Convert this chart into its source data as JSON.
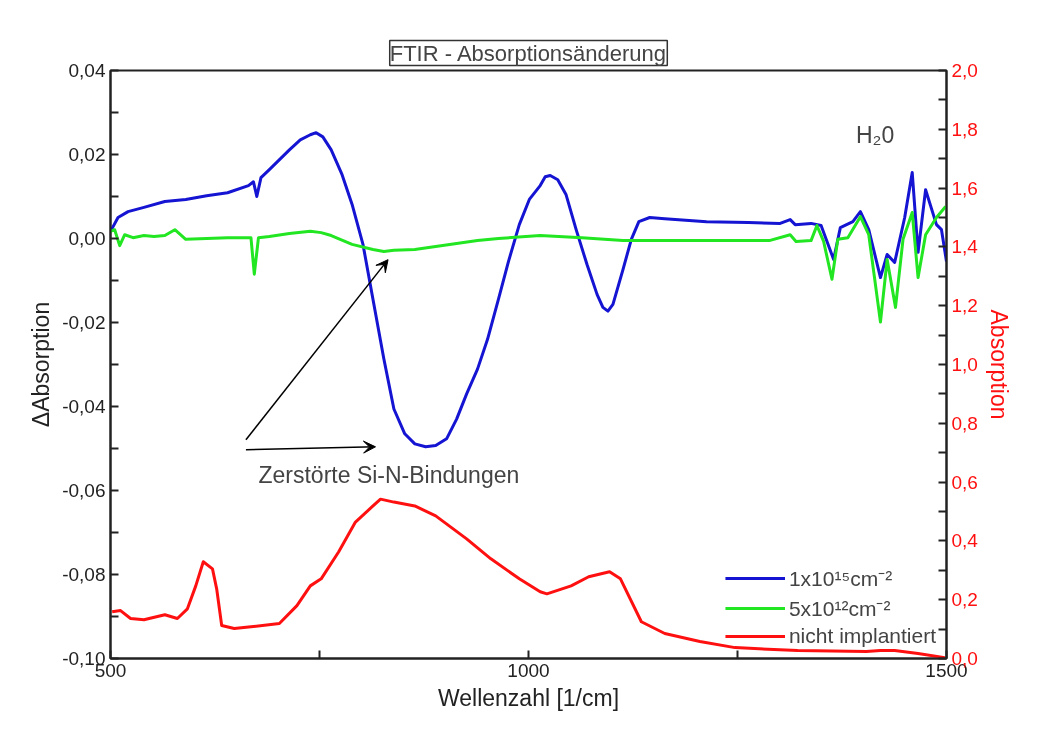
{
  "chart_data": {
    "type": "line",
    "title": "FTIR - Absorptionsänderung",
    "xlabel": "Wellenzahl [1/cm]",
    "ylabel": "ΔAbsorption",
    "y2label": "Absorption",
    "xlim": [
      500,
      1500
    ],
    "xticks": [
      500,
      {
        "value": 750,
        "label": null
      },
      1000,
      {
        "value": 1250,
        "label": null
      },
      1500
    ],
    "ylim": [
      -0.1,
      0.04
    ],
    "yticks": [
      {
        "value": -0.1,
        "label": "-0,10"
      },
      {
        "value": -0.09,
        "label": null
      },
      {
        "value": -0.08,
        "label": "-0,08"
      },
      {
        "value": -0.07,
        "label": null
      },
      {
        "value": -0.06,
        "label": "-0,06"
      },
      {
        "value": -0.05,
        "label": null
      },
      {
        "value": -0.04,
        "label": "-0,04"
      },
      {
        "value": -0.03,
        "label": null
      },
      {
        "value": -0.02,
        "label": "-0,02"
      },
      {
        "value": -0.01,
        "label": null
      },
      {
        "value": 0.0,
        "label": "0,00"
      },
      {
        "value": 0.01,
        "label": null
      },
      {
        "value": 0.02,
        "label": "0,02"
      },
      {
        "value": 0.03,
        "label": null
      },
      {
        "value": 0.04,
        "label": "0,04"
      }
    ],
    "y2lim": [
      0.0,
      2.0
    ],
    "y2ticks": [
      {
        "value": 0.0,
        "label": "0,0"
      },
      {
        "value": 0.1,
        "label": null
      },
      {
        "value": 0.2,
        "label": "0,2"
      },
      {
        "value": 0.3,
        "label": null
      },
      {
        "value": 0.4,
        "label": "0,4"
      },
      {
        "value": 0.5,
        "label": null
      },
      {
        "value": 0.6,
        "label": "0,6"
      },
      {
        "value": 0.7,
        "label": null
      },
      {
        "value": 0.8,
        "label": "0,8"
      },
      {
        "value": 0.9,
        "label": null
      },
      {
        "value": 1.0,
        "label": "1,0"
      },
      {
        "value": 1.1,
        "label": null
      },
      {
        "value": 1.2,
        "label": "1,2"
      },
      {
        "value": 1.3,
        "label": null
      },
      {
        "value": 1.4,
        "label": "1,4"
      },
      {
        "value": 1.5,
        "label": null
      },
      {
        "value": 1.6,
        "label": "1,6"
      },
      {
        "value": 1.7,
        "label": null
      },
      {
        "value": 1.8,
        "label": "1,8"
      },
      {
        "value": 1.9,
        "label": null
      },
      {
        "value": 2.0,
        "label": "2,0"
      }
    ],
    "grid": false,
    "legend": "bottom right",
    "marker": "none",
    "line_style": "solid",
    "annotations": [
      {
        "text": "Zerstörte Si-N-Bindungen",
        "x": 877,
        "y": -0.0496
      },
      {
        "text": "H₂0",
        "x": 1459,
        "y": 0.0157
      }
    ],
    "series": [
      {
        "name": "1x10¹⁵cm⁻²",
        "color": "#1414d2",
        "x": [
          500,
          509,
          521,
          540,
          565,
          590,
          615,
          640,
          665,
          671,
          675,
          680,
          690,
          714,
          727,
          739,
          746,
          754,
          764,
          777,
          789,
          802,
          814,
          827,
          839,
          852,
          864,
          877,
          889,
          902,
          914,
          926,
          939,
          951,
          964,
          976,
          989,
          1001,
          1014,
          1020,
          1026,
          1035,
          1045,
          1057,
          1070,
          1082,
          1089,
          1095,
          1101,
          1113,
          1123,
          1132,
          1145,
          1163,
          1213,
          1263,
          1301,
          1313,
          1319,
          1338,
          1350,
          1365,
          1373,
          1388,
          1397,
          1407,
          1421,
          1429,
          1438,
          1450,
          1459,
          1466,
          1475,
          1488,
          1494,
          1500
        ],
        "values": [
          0.0017,
          0.005,
          0.0064,
          0.0074,
          0.0088,
          0.0093,
          0.0102,
          0.0109,
          0.0126,
          0.0135,
          0.01,
          0.0145,
          0.0164,
          0.0211,
          0.0235,
          0.0247,
          0.0252,
          0.0242,
          0.0211,
          0.0152,
          0.0081,
          -0.0014,
          -0.0145,
          -0.0287,
          -0.0406,
          -0.0465,
          -0.0489,
          -0.0496,
          -0.0493,
          -0.0477,
          -0.043,
          -0.037,
          -0.0311,
          -0.024,
          -0.0145,
          -0.0055,
          0.0033,
          0.0093,
          0.0126,
          0.0147,
          0.015,
          0.014,
          0.0104,
          0.0021,
          -0.0062,
          -0.0133,
          -0.0164,
          -0.0173,
          -0.0157,
          -0.0074,
          -0.0002,
          0.004,
          0.005,
          0.0047,
          0.004,
          0.0038,
          0.0036,
          0.0045,
          0.0033,
          0.0036,
          0.0031,
          -0.005,
          0.0026,
          0.004,
          0.0064,
          0.0021,
          -0.0093,
          -0.0038,
          -0.0057,
          0.005,
          0.0157,
          -0.0033,
          0.0116,
          0.0033,
          0.0021,
          -0.0055
        ]
      },
      {
        "name": "5x10¹²cm⁻²",
        "color": "#22e622",
        "x": [
          500,
          505,
          511,
          517,
          527,
          540,
          552,
          565,
          577,
          590,
          615,
          640,
          668,
          672,
          677,
          690,
          714,
          739,
          752,
          764,
          789,
          814,
          827,
          839,
          864,
          889,
          914,
          939,
          964,
          1014,
          1064,
          1113,
          1188,
          1288,
          1313,
          1320,
          1338,
          1345,
          1353,
          1363,
          1370,
          1382,
          1397,
          1407,
          1421,
          1429,
          1439,
          1448,
          1459,
          1466,
          1475,
          1488,
          1499
        ],
        "values": [
          0.0017,
          0.0021,
          -0.0017,
          0.0009,
          0.0002,
          0.0007,
          0.0005,
          0.0007,
          0.0021,
          -0.0002,
          0.0,
          0.0002,
          0.0002,
          -0.0085,
          0.0002,
          0.0005,
          0.0012,
          0.0017,
          0.0014,
          0.0007,
          -0.0014,
          -0.0026,
          -0.0031,
          -0.0028,
          -0.0026,
          -0.0019,
          -0.0012,
          -0.0005,
          0.0,
          0.0007,
          0.0002,
          -0.0005,
          -0.0005,
          -0.0005,
          0.0009,
          -0.0007,
          -0.0005,
          0.0031,
          -0.0007,
          -0.0097,
          -0.0002,
          0.0002,
          0.0052,
          0.0009,
          -0.0199,
          -0.005,
          -0.0164,
          -0.0002,
          0.0062,
          -0.0093,
          0.0009,
          0.005,
          0.0076
        ]
      },
      {
        "name": "nicht implantiert",
        "color": "#ff1010",
        "axis": "y2",
        "x": [
          502,
          512,
          524,
          540,
          565,
          580,
          592,
          602,
          611,
          622,
          627,
          633,
          648,
          668,
          702,
          723,
          739,
          752,
          773,
          793,
          814,
          823,
          839,
          864,
          889,
          926,
          955,
          989,
          1014,
          1022,
          1051,
          1072,
          1097,
          1110,
          1135,
          1163,
          1205,
          1247,
          1322,
          1404,
          1421,
          1438,
          1466,
          1498
        ],
        "values": [
          0.159,
          0.163,
          0.136,
          0.132,
          0.149,
          0.136,
          0.169,
          0.247,
          0.329,
          0.305,
          0.237,
          0.112,
          0.102,
          0.108,
          0.119,
          0.18,
          0.247,
          0.271,
          0.363,
          0.464,
          0.519,
          0.542,
          0.532,
          0.519,
          0.485,
          0.407,
          0.339,
          0.271,
          0.227,
          0.22,
          0.247,
          0.278,
          0.295,
          0.271,
          0.125,
          0.085,
          0.058,
          0.037,
          0.027,
          0.024,
          0.027,
          0.027,
          0.017,
          0.003
        ]
      }
    ]
  }
}
